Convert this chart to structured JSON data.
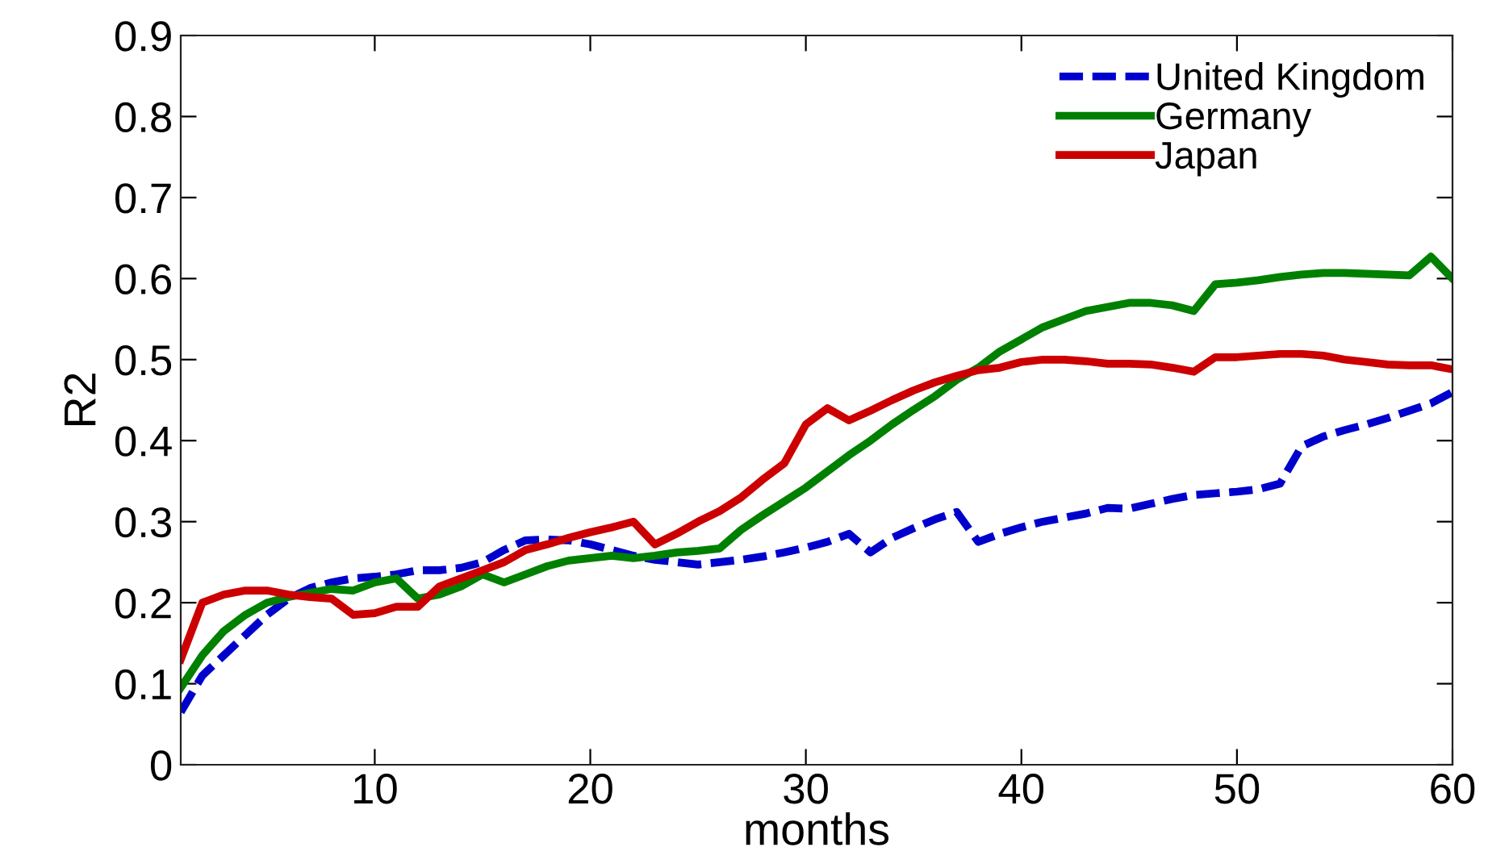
{
  "chart_data": {
    "type": "line",
    "xlabel": "months",
    "ylabel": "R2",
    "x": [
      1,
      2,
      3,
      4,
      5,
      6,
      7,
      8,
      9,
      10,
      11,
      12,
      13,
      14,
      15,
      16,
      17,
      18,
      19,
      20,
      21,
      22,
      23,
      24,
      25,
      26,
      27,
      28,
      29,
      30,
      31,
      32,
      33,
      34,
      35,
      36,
      37,
      38,
      39,
      40,
      41,
      42,
      43,
      44,
      45,
      46,
      47,
      48,
      49,
      50,
      51,
      52,
      53,
      54,
      55,
      56,
      57,
      58,
      59,
      60
    ],
    "series": [
      {
        "name": "United Kingdom",
        "color": "#0000cc",
        "line_style": "dashed",
        "values": [
          0.065,
          0.11,
          0.135,
          0.16,
          0.185,
          0.205,
          0.218,
          0.225,
          0.23,
          0.232,
          0.235,
          0.24,
          0.24,
          0.243,
          0.25,
          0.265,
          0.277,
          0.278,
          0.277,
          0.272,
          0.265,
          0.258,
          0.253,
          0.25,
          0.247,
          0.25,
          0.253,
          0.257,
          0.262,
          0.268,
          0.275,
          0.285,
          0.262,
          0.28,
          0.292,
          0.303,
          0.312,
          0.275,
          0.285,
          0.293,
          0.3,
          0.305,
          0.31,
          0.317,
          0.316,
          0.322,
          0.328,
          0.333,
          0.335,
          0.337,
          0.34,
          0.347,
          0.393,
          0.405,
          0.413,
          0.42,
          0.428,
          0.437,
          0.446,
          0.46
        ]
      },
      {
        "name": "Germany",
        "color": "#008000",
        "line_style": "solid",
        "values": [
          0.095,
          0.135,
          0.165,
          0.185,
          0.2,
          0.207,
          0.212,
          0.217,
          0.215,
          0.225,
          0.23,
          0.205,
          0.21,
          0.22,
          0.235,
          0.225,
          0.235,
          0.245,
          0.252,
          0.255,
          0.258,
          0.255,
          0.258,
          0.262,
          0.264,
          0.267,
          0.29,
          0.308,
          0.325,
          0.342,
          0.362,
          0.382,
          0.4,
          0.42,
          0.438,
          0.455,
          0.475,
          0.49,
          0.51,
          0.525,
          0.54,
          0.55,
          0.56,
          0.565,
          0.57,
          0.57,
          0.567,
          0.56,
          0.593,
          0.595,
          0.598,
          0.602,
          0.605,
          0.607,
          0.607,
          0.606,
          0.605,
          0.604,
          0.627,
          0.6
        ]
      },
      {
        "name": "Japan",
        "color": "#cc0000",
        "line_style": "solid",
        "values": [
          0.13,
          0.2,
          0.21,
          0.215,
          0.215,
          0.21,
          0.207,
          0.205,
          0.185,
          0.187,
          0.195,
          0.195,
          0.22,
          0.23,
          0.24,
          0.25,
          0.265,
          0.272,
          0.28,
          0.287,
          0.293,
          0.3,
          0.272,
          0.285,
          0.3,
          0.313,
          0.33,
          0.352,
          0.372,
          0.42,
          0.44,
          0.425,
          0.437,
          0.45,
          0.462,
          0.472,
          0.48,
          0.487,
          0.49,
          0.497,
          0.5,
          0.5,
          0.498,
          0.495,
          0.495,
          0.494,
          0.49,
          0.485,
          0.503,
          0.503,
          0.505,
          0.507,
          0.507,
          0.505,
          0.5,
          0.497,
          0.494,
          0.493,
          0.493,
          0.488
        ]
      }
    ],
    "xlim": [
      1,
      60
    ],
    "xticks": [
      10,
      20,
      30,
      40,
      50,
      60
    ],
    "ylim": [
      0,
      0.9
    ],
    "yticks": [
      0,
      0.1,
      0.2,
      0.3,
      0.4,
      0.5,
      0.6,
      0.7,
      0.8,
      0.9
    ],
    "legend": "top right",
    "grid": false,
    "marker": "none"
  }
}
